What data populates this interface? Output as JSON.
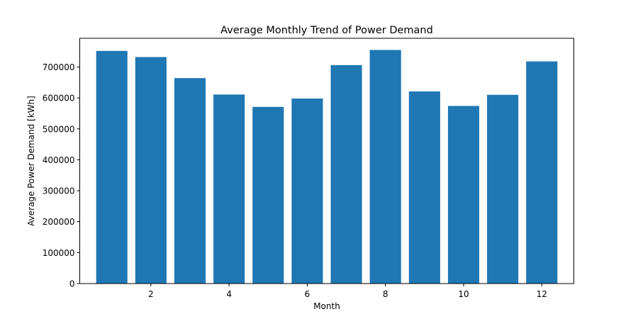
{
  "chart_data": {
    "type": "bar",
    "title": "Average Monthly Trend of Power Demand",
    "xlabel": "Month",
    "ylabel": "Average Power Demand [kWh]",
    "x": [
      1,
      2,
      3,
      4,
      5,
      6,
      7,
      8,
      9,
      10,
      11,
      12
    ],
    "values": [
      752000,
      732000,
      664000,
      611000,
      571000,
      598000,
      706000,
      755000,
      621000,
      574000,
      610000,
      718000
    ],
    "x_ticks": [
      2,
      4,
      6,
      8,
      10,
      12
    ],
    "x_tick_labels": [
      "2",
      "4",
      "6",
      "8",
      "10",
      "12"
    ],
    "y_ticks": [
      0,
      100000,
      200000,
      300000,
      400000,
      500000,
      600000,
      700000
    ],
    "y_tick_labels": [
      "0",
      "100000",
      "200000",
      "300000",
      "400000",
      "500000",
      "600000",
      "700000"
    ],
    "xlim": [
      0.18,
      12.82
    ],
    "ylim": [
      0,
      792750
    ],
    "grid": false,
    "bar_color": "#1f77b4"
  }
}
